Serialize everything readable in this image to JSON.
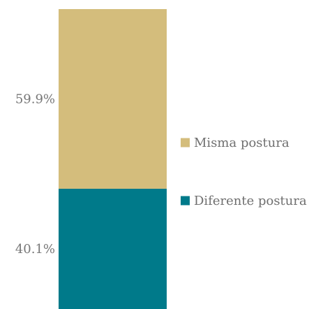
{
  "chart_data": {
    "type": "bar",
    "stacked": true,
    "percent": true,
    "categories": [
      ""
    ],
    "series": [
      {
        "name": "Diferente postura",
        "value": 40.1,
        "label": "40.1%",
        "color": "#007A8A"
      },
      {
        "name": "Misma postura",
        "value": 59.9,
        "label": "59.9%",
        "color": "#D4BD7C"
      }
    ],
    "ylim": [
      0,
      100
    ],
    "grid": false,
    "legend_position": "right",
    "legend_order": [
      "Misma postura",
      "Diferente postura"
    ]
  }
}
